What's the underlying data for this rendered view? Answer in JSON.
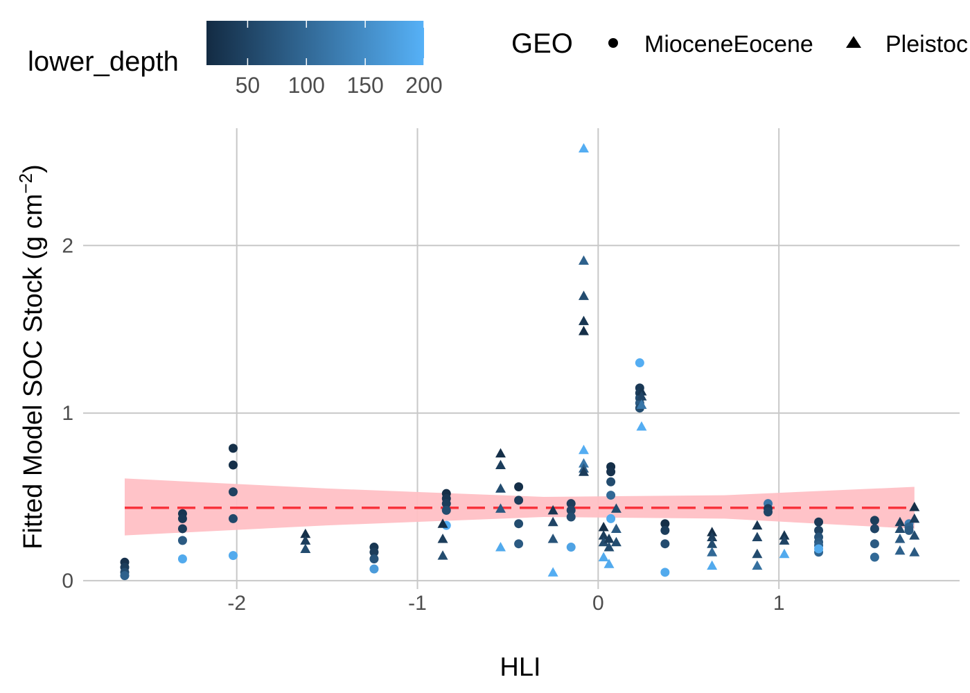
{
  "chart_data": {
    "type": "scatter",
    "title": "",
    "xlabel": "HLI",
    "ylabel": {
      "main": "Fitted Model SOC Stock (g cm",
      "sup": "−2",
      "close": ")"
    },
    "xlim": [
      -2.85,
      2.0
    ],
    "ylim": [
      -0.05,
      2.7
    ],
    "x_ticks": [
      -2,
      -1,
      0,
      1
    ],
    "y_ticks": [
      0,
      1,
      2
    ],
    "grid": true,
    "colorbar": {
      "title": "lower_depth",
      "ticks": [
        50,
        100,
        150,
        200
      ],
      "range": [
        15,
        200
      ],
      "low_color": "#132B43",
      "high_color": "#56B1F7"
    },
    "shape_legend": {
      "title": "GEO",
      "entries": [
        {
          "label": "MioceneEocene",
          "shape": "circle"
        },
        {
          "label": "Pleistoc",
          "shape": "triangle"
        }
      ]
    },
    "trend": {
      "x": [
        -2.62,
        1.75
      ],
      "y": [
        0.435,
        0.435
      ],
      "color": "#F8333C",
      "style": "dashed",
      "band_x": [
        -2.62,
        -1.5,
        -0.3,
        0.7,
        1.75
      ],
      "band_lower": [
        0.27,
        0.33,
        0.38,
        0.37,
        0.31
      ],
      "band_upper": [
        0.61,
        0.55,
        0.5,
        0.51,
        0.56
      ],
      "band_color": "#FFC0C5"
    },
    "series": [
      {
        "shape": "circle",
        "points": [
          [
            -2.62,
            0.11,
            25
          ],
          [
            -2.62,
            0.08,
            40
          ],
          [
            -2.62,
            0.05,
            60
          ],
          [
            -2.62,
            0.03,
            90
          ],
          [
            -2.3,
            0.4,
            30
          ],
          [
            -2.3,
            0.37,
            35
          ],
          [
            -2.3,
            0.31,
            40
          ],
          [
            -2.3,
            0.24,
            80
          ],
          [
            -2.3,
            0.13,
            190
          ],
          [
            -2.02,
            0.79,
            20
          ],
          [
            -2.02,
            0.69,
            20
          ],
          [
            -2.02,
            0.53,
            45
          ],
          [
            -2.02,
            0.37,
            55
          ],
          [
            -2.02,
            0.15,
            190
          ],
          [
            -1.24,
            0.2,
            30
          ],
          [
            -1.24,
            0.17,
            40
          ],
          [
            -1.24,
            0.13,
            70
          ],
          [
            -1.24,
            0.07,
            170
          ],
          [
            -0.84,
            0.52,
            20
          ],
          [
            -0.84,
            0.49,
            30
          ],
          [
            -0.84,
            0.46,
            40
          ],
          [
            -0.84,
            0.42,
            60
          ],
          [
            -0.84,
            0.33,
            195
          ],
          [
            -0.44,
            0.56,
            20
          ],
          [
            -0.44,
            0.48,
            40
          ],
          [
            -0.44,
            0.34,
            60
          ],
          [
            -0.44,
            0.22,
            80
          ],
          [
            -0.15,
            0.46,
            40
          ],
          [
            -0.15,
            0.42,
            50
          ],
          [
            -0.15,
            0.38,
            60
          ],
          [
            -0.15,
            0.2,
            180
          ],
          [
            0.07,
            0.68,
            20
          ],
          [
            0.07,
            0.65,
            25
          ],
          [
            0.07,
            0.59,
            60
          ],
          [
            0.07,
            0.51,
            100
          ],
          [
            0.07,
            0.37,
            190
          ],
          [
            0.23,
            1.3,
            195
          ],
          [
            0.23,
            1.15,
            35
          ],
          [
            0.23,
            1.12,
            40
          ],
          [
            0.23,
            1.09,
            60
          ],
          [
            0.23,
            1.06,
            80
          ],
          [
            0.23,
            1.03,
            60
          ],
          [
            0.37,
            0.34,
            20
          ],
          [
            0.37,
            0.3,
            40
          ],
          [
            0.37,
            0.22,
            60
          ],
          [
            0.37,
            0.05,
            190
          ],
          [
            0.94,
            0.46,
            120
          ],
          [
            0.94,
            0.43,
            40
          ],
          [
            0.94,
            0.41,
            50
          ],
          [
            1.22,
            0.35,
            35
          ],
          [
            1.22,
            0.3,
            45
          ],
          [
            1.22,
            0.26,
            70
          ],
          [
            1.22,
            0.23,
            80
          ],
          [
            1.22,
            0.21,
            90
          ],
          [
            1.22,
            0.17,
            95
          ],
          [
            1.22,
            0.19,
            190
          ],
          [
            1.53,
            0.36,
            40
          ],
          [
            1.53,
            0.31,
            50
          ],
          [
            1.53,
            0.22,
            80
          ],
          [
            1.53,
            0.14,
            100
          ],
          [
            1.72,
            0.34,
            130
          ],
          [
            1.72,
            0.32,
            90
          ],
          [
            1.72,
            0.3,
            80
          ]
        ]
      },
      {
        "shape": "triangle",
        "points": [
          [
            -1.62,
            0.28,
            20
          ],
          [
            -1.62,
            0.24,
            40
          ],
          [
            -1.62,
            0.19,
            60
          ],
          [
            -0.86,
            0.34,
            20
          ],
          [
            -0.86,
            0.25,
            40
          ],
          [
            -0.86,
            0.15,
            60
          ],
          [
            -0.54,
            0.76,
            20
          ],
          [
            -0.54,
            0.69,
            40
          ],
          [
            -0.54,
            0.55,
            60
          ],
          [
            -0.54,
            0.43,
            80
          ],
          [
            -0.54,
            0.2,
            190
          ],
          [
            -0.25,
            0.42,
            30
          ],
          [
            -0.25,
            0.35,
            50
          ],
          [
            -0.25,
            0.25,
            70
          ],
          [
            -0.25,
            0.05,
            195
          ],
          [
            -0.08,
            2.58,
            195
          ],
          [
            -0.08,
            1.91,
            90
          ],
          [
            -0.08,
            1.7,
            60
          ],
          [
            -0.08,
            1.55,
            30
          ],
          [
            -0.08,
            1.49,
            20
          ],
          [
            -0.08,
            0.78,
            195
          ],
          [
            -0.08,
            0.7,
            120
          ],
          [
            -0.08,
            0.67,
            80
          ],
          [
            -0.08,
            0.65,
            40
          ],
          [
            0.03,
            0.32,
            20
          ],
          [
            0.03,
            0.27,
            40
          ],
          [
            0.03,
            0.23,
            60
          ],
          [
            0.03,
            0.14,
            190
          ],
          [
            0.06,
            0.25,
            40
          ],
          [
            0.06,
            0.2,
            60
          ],
          [
            0.06,
            0.1,
            190
          ],
          [
            0.1,
            0.43,
            60
          ],
          [
            0.1,
            0.31,
            80
          ],
          [
            0.1,
            0.23,
            60
          ],
          [
            0.24,
            1.13,
            30
          ],
          [
            0.24,
            1.1,
            50
          ],
          [
            0.24,
            1.05,
            120
          ],
          [
            0.24,
            0.92,
            195
          ],
          [
            0.63,
            0.29,
            20
          ],
          [
            0.63,
            0.26,
            40
          ],
          [
            0.63,
            0.22,
            60
          ],
          [
            0.63,
            0.17,
            100
          ],
          [
            0.63,
            0.09,
            190
          ],
          [
            0.88,
            0.33,
            30
          ],
          [
            0.88,
            0.26,
            50
          ],
          [
            0.88,
            0.16,
            60
          ],
          [
            0.88,
            0.09,
            110
          ],
          [
            1.03,
            0.27,
            30
          ],
          [
            1.03,
            0.24,
            50
          ],
          [
            1.03,
            0.16,
            190
          ],
          [
            1.67,
            0.35,
            40
          ],
          [
            1.67,
            0.31,
            60
          ],
          [
            1.67,
            0.25,
            80
          ],
          [
            1.67,
            0.18,
            90
          ],
          [
            1.75,
            0.44,
            20
          ],
          [
            1.75,
            0.37,
            40
          ],
          [
            1.75,
            0.27,
            60
          ],
          [
            1.75,
            0.17,
            80
          ]
        ]
      }
    ]
  }
}
